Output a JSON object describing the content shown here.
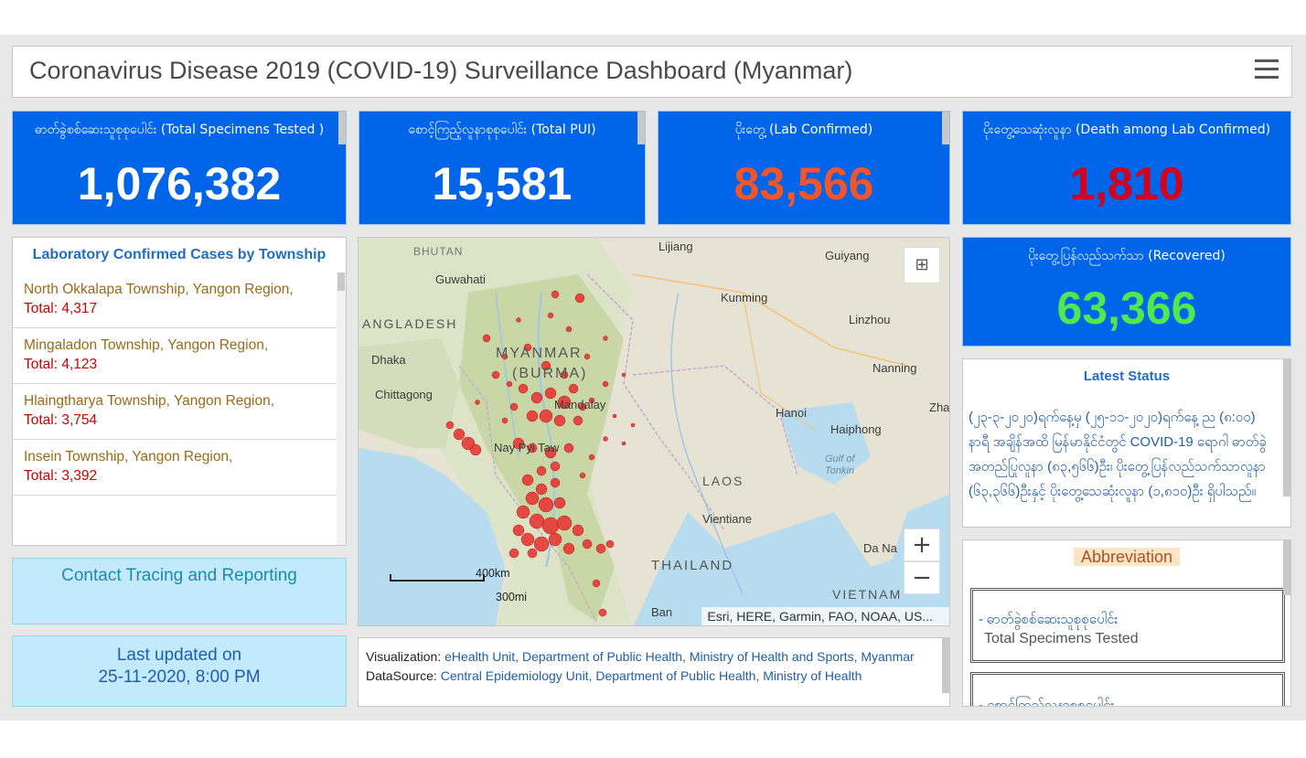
{
  "header": {
    "title": "Coronavirus Disease 2019 (COVID-19) Surveillance Dashboard (Myanmar)",
    "menu_icon": "hamburger-menu-icon"
  },
  "stats": {
    "tested": {
      "label": "ဓာတ်ခွဲစစ်ဆေးသူစုစုပေါင်း (Total Specimens Tested )",
      "value": "1,076,382",
      "color": "#ffffff"
    },
    "pui": {
      "label": "စောင့်ကြည့်လူနာစုစုပေါင်း (Total PUI)",
      "value": "15,581",
      "color": "#ffffff"
    },
    "confirmed": {
      "label": "ပိုးတွေ့ (Lab Confirmed)",
      "value": "83,566",
      "color": "#f2552a"
    },
    "deaths": {
      "label": "ပိုးတွေ့သေဆုံးလူနာ (Death among Lab Confirmed)",
      "value": "1,810",
      "color": "#d4001c"
    },
    "recovered": {
      "label": "ပိုးတွေ့ပြန်လည်သက်သာ (Recovered)",
      "value": "63,366",
      "color": "#4fe94f"
    }
  },
  "township": {
    "title": "Laboratory Confirmed Cases by Township",
    "items": [
      {
        "name": "North Okkalapa Township, Yangon Region,",
        "total": "Total: 4,317"
      },
      {
        "name": "Mingaladon Township, Yangon Region,",
        "total": "Total: 4,123"
      },
      {
        "name": "Hlaingtharya Township, Yangon Region,",
        "total": "Total: 3,754"
      },
      {
        "name": "Insein Township, Yangon Region,",
        "total": "Total: 3,392"
      }
    ]
  },
  "contact": {
    "label": "Contact Tracing and Reporting"
  },
  "updated": {
    "line1": "Last updated on",
    "line2": "25-11-2020, 8:00 PM"
  },
  "map": {
    "labels": {
      "bhutan": "BHUTAN",
      "guwahati": "Guwahati",
      "lijiang": "Lijiang",
      "guiyang": "Guiyang",
      "kunming": "Kunming",
      "bangladesh": "ANGLADESH",
      "linzhou": "Linzhou",
      "dhaka": "Dhaka",
      "myanmar": "MYANMAR",
      "burma": "(BURMA)",
      "nanning": "Nanning",
      "chittagong": "Chittagong",
      "mandalay": "Mandalay",
      "zhan": "Zhar",
      "hanoi": "Hanoi",
      "haiphong": "Haiphong",
      "naypyitaw": "Nay Pyi Taw",
      "gulf": "Gulf of",
      "tonkin": "Tonkin",
      "laos": "LAOS",
      "vientiane": "Vientiane",
      "thailand": "THAILAND",
      "danang": "Da Na",
      "vietnam": "VIETNAM",
      "ban": "Ban"
    },
    "scale_km": "400km",
    "scale_mi": "300mi",
    "attribution": "Esri, HERE, Garmin, FAO, NOAA, US...",
    "zoom_in": "+",
    "zoom_out": "−"
  },
  "credits": {
    "vis_label": "Visualization:",
    "vis_value": "eHealth Unit, Department of Public Health, Ministry of Health and Sports, Myanmar",
    "src_label": "DataSource:",
    "src_value": "Central Epidemiology Unit, Department of Public Health, Ministry of Health"
  },
  "latest": {
    "title": "Latest Status",
    "body": "(၂၃-၃-၂၀၂၀)ရက်နေ့မှ (၂၅-၁၁-၂၀၂၀)ရက်နေ့ ည (၈:၀၀) နာရီ အချိန်အထိ မြန်မာနိုင်ငံတွင် COVID-19 ရောဂါ ဓာတ်ခွဲအတည်ပြုလူနာ (၈၃,၅၆၆)ဦး၊ ပိုးတွေ့ပြန်လည်သက်သာလူနာ (၆၃,၃၆၆)ဦးနှင့် ပိုးတွေ့သေဆုံးလူနာ (၁,၈၁၀)ဦး ရှိပါသည်။"
  },
  "abbr": {
    "title": "Abbreviation",
    "items": [
      {
        "mm": "- ဓာတ်ခွဲစစ်ဆေးသူစုစုပေါင်း",
        "en": "Total Specimens Tested"
      },
      {
        "mm": "- စောင့်ကြည့်လူနာစုစုပေါင်း",
        "en": ""
      }
    ]
  }
}
